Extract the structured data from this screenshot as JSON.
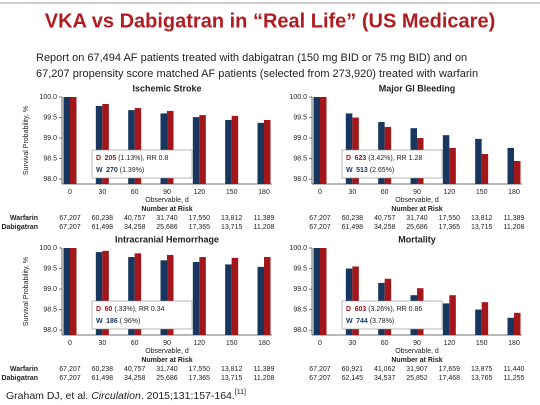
{
  "slide": {
    "title": "VKA vs Dabigatran in “Real Life” (US Medicare)",
    "subtitle": [
      "Report on 67,494 AF patients treated with dabigatran (150 mg BID or 75 mg BID) and on",
      "67,207 propensity score matched AF patients (selected from 273,920) treated with warfarin"
    ],
    "citation": [
      "Graham DJ, et al. ",
      "Circulation",
      ". 2015;131:157-164.",
      "[11]"
    ]
  },
  "chart_data": [
    {
      "type": "bar",
      "title": "Ischemic Stroke",
      "y_label": "Survival Probability, %",
      "x_label": "Observable, d",
      "categories": [
        "0",
        "30",
        "60",
        "90",
        "120",
        "150",
        "180"
      ],
      "series": [
        {
          "color": "#17375e",
          "values": [
            100,
            99.78,
            99.68,
            99.6,
            99.51,
            99.44,
            99.37
          ]
        },
        {
          "color": "#a3171b",
          "values": [
            100,
            99.83,
            99.73,
            99.66,
            99.56,
            99.54,
            99.44
          ]
        }
      ],
      "ylim": [
        97.88,
        100
      ],
      "yticks": [
        {
          "value": 100,
          "label": "100.0"
        },
        {
          "value": 99.5,
          "label": "99.5"
        },
        {
          "value": 99,
          "label": "99.0"
        },
        {
          "value": 98.5,
          "label": "98.5"
        },
        {
          "value": 98,
          "label": "98.0"
        }
      ],
      "annotation": [
        {
          "label": "D",
          "count": "205",
          "rest": "(1.13%), RR 0.8"
        },
        {
          "label": "W",
          "count": "270",
          "rest": "(1.39%)"
        }
      ],
      "at_risk": {
        "title": "Number at Risk",
        "rows": [
          {
            "label": "Warfarin",
            "values": [
              "67,207",
              "60,238",
              "40,757",
              "31,740",
              "17,550",
              "13,812",
              "11,389"
            ]
          },
          {
            "label": "Dabigatran",
            "values": [
              "67,207",
              "61,498",
              "34,258",
              "25,686",
              "17,365",
              "13,715",
              "11,208"
            ]
          }
        ]
      }
    },
    {
      "type": "bar",
      "title": "Major GI Bleeding",
      "x_label": "Observable, d",
      "categories": [
        "0",
        "30",
        "60",
        "90",
        "120",
        "150",
        "180"
      ],
      "series": [
        {
          "color": "#17375e",
          "values": [
            100,
            99.6,
            99.39,
            99.24,
            99.07,
            98.98,
            98.76
          ]
        },
        {
          "color": "#a3171b",
          "values": [
            100,
            99.5,
            99.27,
            99.0,
            98.76,
            98.61,
            98.44
          ]
        }
      ],
      "ylim": [
        97.88,
        100
      ],
      "yticks": [
        {
          "value": 100,
          "label": "100.0"
        },
        {
          "value": 99.5,
          "label": "99.5"
        },
        {
          "value": 99,
          "label": "99.0"
        },
        {
          "value": 98.5,
          "label": "98.5"
        },
        {
          "value": 98,
          "label": "98.0"
        }
      ],
      "annotation": [
        {
          "label": "D",
          "count": "623",
          "rest": "(3.42%), RR 1.28"
        },
        {
          "label": "W",
          "count": "513",
          "rest": "(2.65%)"
        }
      ],
      "at_risk": {
        "title": "Number at Risk",
        "rows": [
          {
            "values": [
              "67,207",
              "60,238",
              "40,757",
              "31,740",
              "17,550",
              "13,812",
              "11,389"
            ]
          },
          {
            "values": [
              "67,207",
              "61,498",
              "34,258",
              "25,686",
              "17,365",
              "13,715",
              "11,208"
            ]
          }
        ]
      }
    },
    {
      "type": "bar",
      "title": "Intracranial Hemorrhage",
      "y_label": "Survival Probability, %",
      "x_label": "Observable, d",
      "categories": [
        "0",
        "30",
        "60",
        "90",
        "120",
        "150",
        "180"
      ],
      "series": [
        {
          "color": "#17375e",
          "values": [
            100,
            99.9,
            99.78,
            99.7,
            99.66,
            99.6,
            99.54
          ]
        },
        {
          "color": "#a3171b",
          "values": [
            100,
            99.93,
            99.87,
            99.83,
            99.78,
            99.76,
            99.78
          ]
        }
      ],
      "ylim": [
        97.88,
        100
      ],
      "yticks": [
        {
          "value": 100,
          "label": "100.0"
        },
        {
          "value": 99.5,
          "label": "99.5"
        },
        {
          "value": 99,
          "label": "99.0"
        },
        {
          "value": 98.5,
          "label": "98.5"
        },
        {
          "value": 98,
          "label": "98.0"
        }
      ],
      "annotation": [
        {
          "label": "D",
          "count": "60",
          "rest": "(.33%), RR 0.34"
        },
        {
          "label": "W",
          "count": "186",
          "rest": "(.96%)"
        }
      ],
      "at_risk": {
        "title": "Number at Risk",
        "rows": [
          {
            "label": "Warfarin",
            "values": [
              "67,207",
              "60,238",
              "40,757",
              "31,740",
              "17,550",
              "13,812",
              "11,389"
            ]
          },
          {
            "label": "Dabigatran",
            "values": [
              "67,207",
              "61,498",
              "34,258",
              "25,686",
              "17,365",
              "13,715",
              "11,208"
            ]
          }
        ]
      }
    },
    {
      "type": "bar",
      "title": "Mortality",
      "x_label": "Observable, d",
      "categories": [
        "0",
        "30",
        "60",
        "90",
        "120",
        "150",
        "180"
      ],
      "series": [
        {
          "color": "#17375e",
          "values": [
            100,
            99.5,
            99.15,
            98.85,
            98.65,
            98.5,
            98.3
          ]
        },
        {
          "color": "#a3171b",
          "values": [
            100,
            99.55,
            99.25,
            99.02,
            98.85,
            98.68,
            98.42
          ]
        }
      ],
      "ylim": [
        97.88,
        100
      ],
      "yticks": [
        {
          "value": 100,
          "label": "100.0"
        },
        {
          "value": 99.5,
          "label": "99.5"
        },
        {
          "value": 99,
          "label": "99.0"
        },
        {
          "value": 98.5,
          "label": "98.5"
        },
        {
          "value": 98,
          "label": "98.0"
        }
      ],
      "annotation": [
        {
          "label": "D",
          "count": "603",
          "rest": "(3.26%), RR 0.86"
        },
        {
          "label": "W",
          "count": "744",
          "rest": "(3.78%)"
        }
      ],
      "at_risk": {
        "title": "Number at Risk",
        "rows": [
          {
            "values": [
              "67,207",
              "60,921",
              "41,062",
              "31,907",
              "17,659",
              "13,875",
              "11,440"
            ]
          },
          {
            "values": [
              "67,207",
              "62,145",
              "34,537",
              "25,852",
              "17,468",
              "13,765",
              "11,255"
            ]
          }
        ]
      }
    }
  ]
}
